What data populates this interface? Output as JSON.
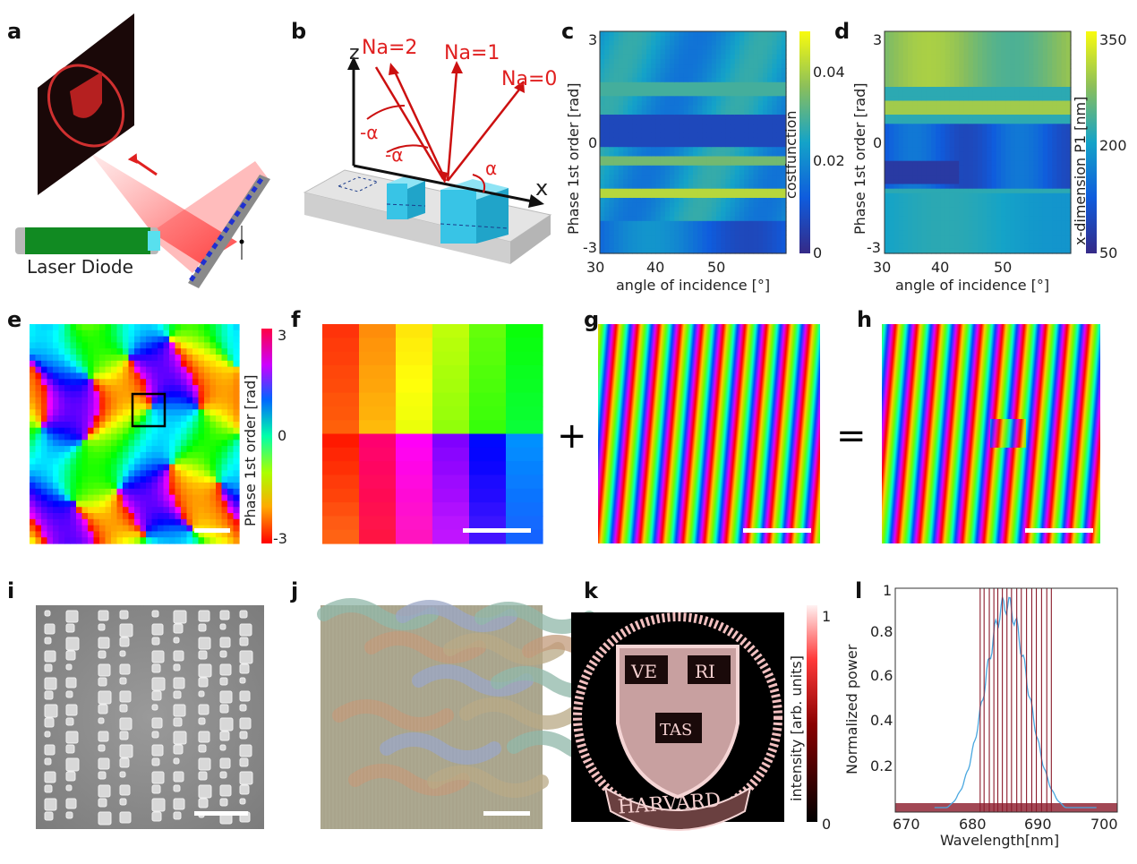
{
  "panels": {
    "a": {
      "label": "a",
      "device_label": "Laser Diode"
    },
    "b": {
      "label": "b",
      "axis_z": "z",
      "axis_x": "x",
      "order_2": "Na=2",
      "order_1": "Na=1",
      "order_0": "Na=0",
      "angle_neg": "-α",
      "angle_pos": "α"
    },
    "c": {
      "label": "c",
      "ylabel": "Phase 1st order [rad]",
      "xlabel": "angle of incidence [°]",
      "colorbar_label": "costfunction",
      "yticks": [
        "3",
        "0",
        "-3"
      ],
      "xticks": [
        "30",
        "40",
        "50"
      ],
      "cbar_ticks": [
        "0.04",
        "0.02",
        "0"
      ]
    },
    "d": {
      "label": "d",
      "ylabel": "Phase 1st order [rad]",
      "xlabel": "angle of incidence [°]",
      "colorbar_label": "x-dimension P1 [nm]",
      "yticks": [
        "3",
        "0",
        "-3"
      ],
      "xticks": [
        "30",
        "40",
        "50"
      ],
      "cbar_ticks": [
        "350",
        "200",
        "50"
      ]
    },
    "e": {
      "label": "e",
      "colorbar_label": "Phase 1st order [rad]",
      "cbar_ticks": [
        "3",
        "0",
        "-3"
      ]
    },
    "f": {
      "label": "f"
    },
    "plus": "+",
    "g": {
      "label": "g"
    },
    "equals": "=",
    "h": {
      "label": "h"
    },
    "i": {
      "label": "i"
    },
    "j": {
      "label": "j"
    },
    "k": {
      "label": "k",
      "colorbar_label": "intensity [arb. units]",
      "cbar_ticks": [
        "1",
        "0"
      ],
      "seal_text": {
        "ve": "VE",
        "ri": "RI",
        "tas": "TAS",
        "harvard": "HARVARD"
      }
    },
    "l": {
      "label": "l",
      "ylabel": "Normalized power",
      "xlabel": "Wavelength[nm]",
      "yticks": [
        "1",
        "0.8",
        "0.6",
        "0.4",
        "0.2"
      ],
      "xticks": [
        "670",
        "680",
        "690",
        "700"
      ]
    }
  },
  "chart_data": [
    {
      "panel": "c",
      "type": "heatmap",
      "xlabel": "angle of incidence [°]",
      "ylabel": "Phase 1st order [rad]",
      "xlim": [
        30,
        60
      ],
      "ylim": [
        -3,
        3
      ],
      "colorbar": {
        "label": "costfunction",
        "range": [
          0,
          0.05
        ],
        "ticks": [
          0,
          0.02,
          0.04
        ],
        "colormap": "parula"
      }
    },
    {
      "panel": "d",
      "type": "heatmap",
      "xlabel": "angle of incidence [°]",
      "ylabel": "Phase 1st order [rad]",
      "xlim": [
        30,
        60
      ],
      "ylim": [
        -3,
        3
      ],
      "colorbar": {
        "label": "x-dimension P1 [nm]",
        "range": [
          50,
          350
        ],
        "ticks": [
          50,
          200,
          350
        ],
        "colormap": "parula"
      }
    },
    {
      "panel": "l",
      "type": "line",
      "xlabel": "Wavelength[nm]",
      "ylabel": "Normalized power",
      "xlim": [
        668,
        702
      ],
      "ylim": [
        0,
        1
      ],
      "series": [
        {
          "color": "#4aa8e0",
          "center": 685,
          "peak": 0.93,
          "width": 3.3
        },
        {
          "color": "#8b1a2b",
          "baseline": 0.04,
          "lines": [
            681,
            681.6,
            682.4,
            683.1,
            683.7,
            684.4,
            685.1,
            685.8,
            686.6,
            687.3,
            688.1,
            688.9,
            689.6,
            690.4,
            691.2,
            691.9
          ]
        }
      ]
    }
  ]
}
